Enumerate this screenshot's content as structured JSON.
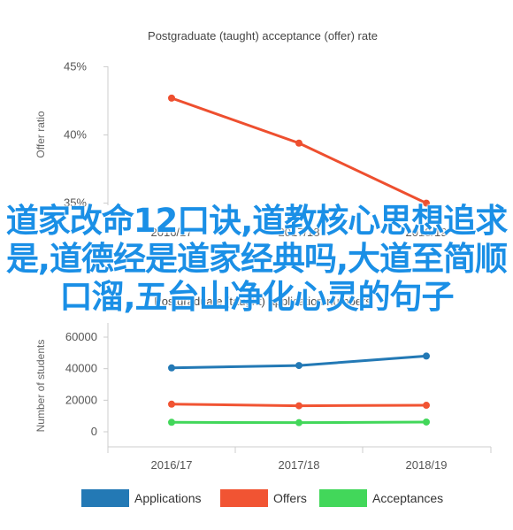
{
  "chart_data": [
    {
      "type": "line",
      "title": "Postgraduate (taught) acceptance (offer) rate",
      "xlabel": "",
      "ylabel": "Offer ratio",
      "categories": [
        "2016/17",
        "2017/18",
        "2018/19"
      ],
      "yticks": [
        "35%",
        "40%",
        "45%"
      ],
      "ylim": [
        34,
        46
      ],
      "series": [
        {
          "values": [
            42.7,
            39.4,
            35.0
          ],
          "color": "#ee4f2f"
        }
      ]
    },
    {
      "type": "line",
      "title": "Postgraduate (taught) application numbers",
      "xlabel": "",
      "ylabel": "Number of students",
      "categories": [
        "2016/17",
        "2017/18",
        "2018/19"
      ],
      "yticks": [
        "0",
        "20000",
        "40000",
        "60000"
      ],
      "ylim": [
        -5000,
        65000
      ],
      "legend": "bottom",
      "series": [
        {
          "name": "Applications",
          "values": [
            40500,
            42000,
            48000
          ],
          "color": "#2379b5"
        },
        {
          "name": "Offers",
          "values": [
            17500,
            16500,
            16800
          ],
          "color": "#f15433"
        },
        {
          "name": "Acceptances",
          "values": [
            6000,
            5800,
            6200
          ],
          "color": "#42d75a"
        }
      ]
    }
  ],
  "overlay_text": "道家改命12口诀,道教核心思想追求是,道德经是道家经典吗,大道至简顺口溜,五台山净化心灵的句子"
}
